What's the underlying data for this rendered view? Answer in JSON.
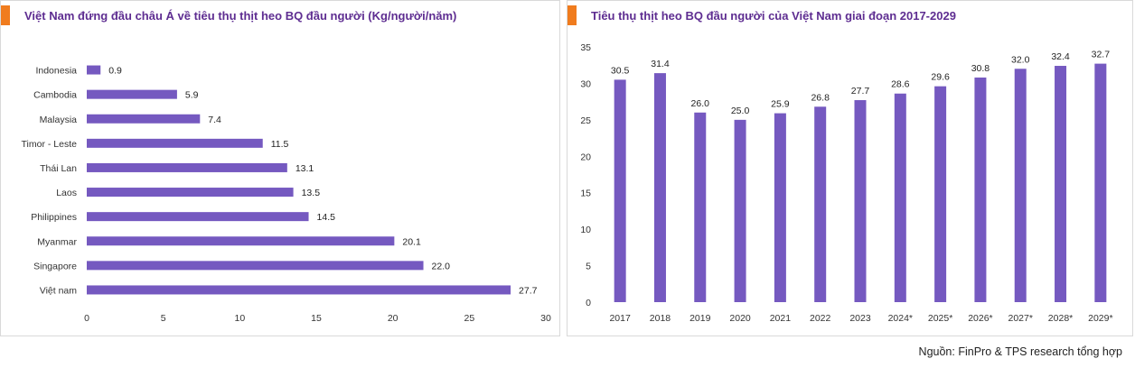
{
  "colors": {
    "accent": "#f07c1e",
    "title": "#5e2d91",
    "bar": "#7559c0"
  },
  "left_chart": {
    "title": "Việt Nam đứng đầu châu Á về tiêu thụ thịt heo BQ đầu người (Kg/người/năm)"
  },
  "right_chart": {
    "title": "Tiêu thụ thịt heo BQ đầu người của Việt Nam giai đoạn 2017-2029"
  },
  "source": "Nguồn: FinPro & TPS research tổng hợp",
  "chart_data": [
    {
      "type": "bar",
      "orientation": "horizontal",
      "title": "Việt Nam đứng đầu châu Á về tiêu thụ thịt heo BQ đầu người (Kg/người/năm)",
      "categories": [
        "Indonesia",
        "Cambodia",
        "Malaysia",
        "Timor - Leste",
        "Thái Lan",
        "Laos",
        "Philippines",
        "Myanmar",
        "Singapore",
        "Việt nam"
      ],
      "values": [
        0.9,
        5.9,
        7.4,
        11.5,
        13.1,
        13.5,
        14.5,
        20.1,
        22.0,
        27.7
      ],
      "value_labels": [
        "0.9",
        "5.9",
        "7.4",
        "11.5",
        "13.1",
        "13.5",
        "14.5",
        "20.1",
        "22.0",
        "27.7"
      ],
      "xlim": [
        0,
        30
      ],
      "xticks": [
        "0",
        "5",
        "10",
        "15",
        "20",
        "25",
        "30"
      ],
      "grid": false,
      "legend": false
    },
    {
      "type": "bar",
      "orientation": "vertical",
      "title": "Tiêu thụ thịt heo BQ đầu người của Việt Nam giai đoạn 2017-2029",
      "categories": [
        "2017",
        "2018",
        "2019",
        "2020",
        "2021",
        "2022",
        "2023",
        "2024*",
        "2025*",
        "2026*",
        "2027*",
        "2028*",
        "2029*"
      ],
      "values": [
        30.5,
        31.4,
        26.0,
        25.0,
        25.9,
        26.8,
        27.7,
        28.6,
        29.6,
        30.8,
        32.0,
        32.4,
        32.7
      ],
      "value_labels": [
        "30.5",
        "31.4",
        "26.0",
        "25.0",
        "25.9",
        "26.8",
        "27.7",
        "28.6",
        "29.6",
        "30.8",
        "32.0",
        "32.4",
        "32.7"
      ],
      "ylim": [
        0,
        35
      ],
      "yticks": [
        "0",
        "5",
        "10",
        "15",
        "20",
        "25",
        "30",
        "35"
      ],
      "grid": false,
      "legend": false
    }
  ]
}
